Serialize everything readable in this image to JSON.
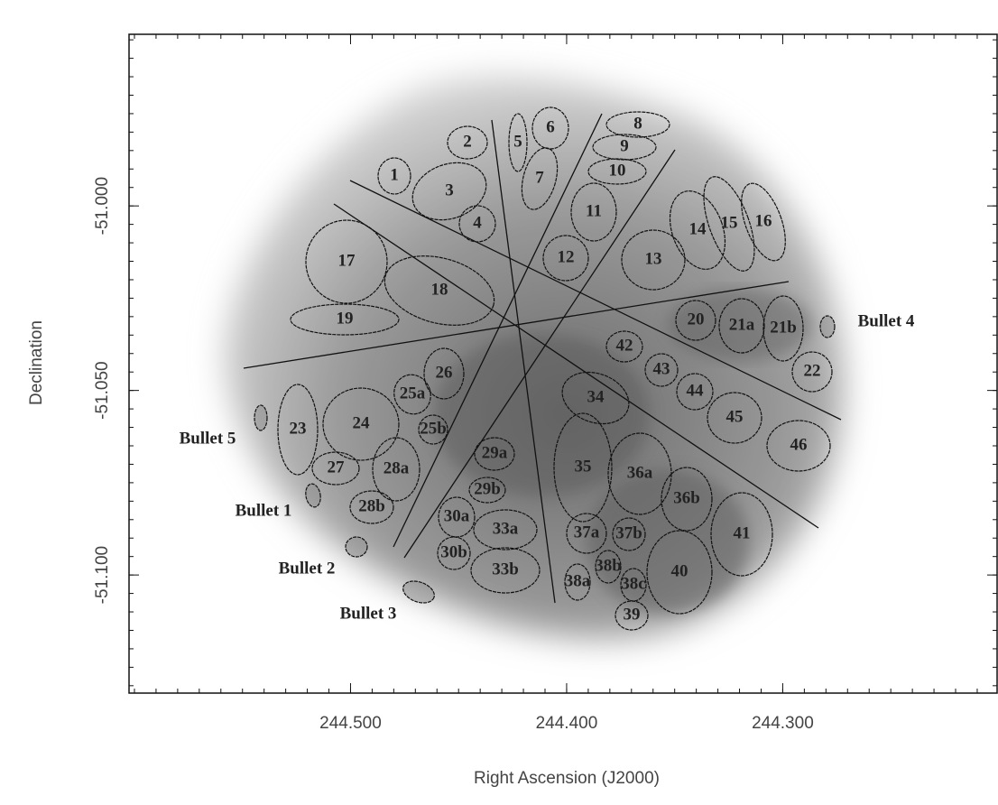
{
  "chart_data": {
    "type": "image",
    "x_label": "Right Ascension (J2000)",
    "y_label": "Declination",
    "xlim": [
      244.6025,
      244.2008
    ],
    "ylim": [
      -51.132,
      -50.9535
    ],
    "xticks": [
      {
        "value": 244.5,
        "label": "244.500"
      },
      {
        "value": 244.4,
        "label": "244.400"
      },
      {
        "value": 244.3,
        "label": "244.300"
      }
    ],
    "yticks": [
      {
        "value": -51.0,
        "label": "-51.000"
      },
      {
        "value": -51.05,
        "label": "-51.050"
      },
      {
        "value": -51.1,
        "label": "-51.100"
      }
    ],
    "regions": [
      "1",
      "2",
      "3",
      "4",
      "5",
      "6",
      "7",
      "8",
      "9",
      "10",
      "11",
      "12",
      "13",
      "14",
      "15",
      "16",
      "17",
      "18",
      "19",
      "20",
      "21a",
      "21b",
      "22",
      "42",
      "43",
      "44",
      "45",
      "46",
      "34",
      "26",
      "25a",
      "25b",
      "23",
      "24",
      "27",
      "28a",
      "28b",
      "29a",
      "29b",
      "30a",
      "30b",
      "33a",
      "33b",
      "35",
      "36a",
      "36b",
      "37a",
      "37b",
      "38a",
      "38b",
      "38c",
      "39",
      "40",
      "41"
    ],
    "bullets": [
      "Bullet 4",
      "Bullet 5",
      "Bullet 1",
      "Bullet 2",
      "Bullet 3"
    ]
  }
}
